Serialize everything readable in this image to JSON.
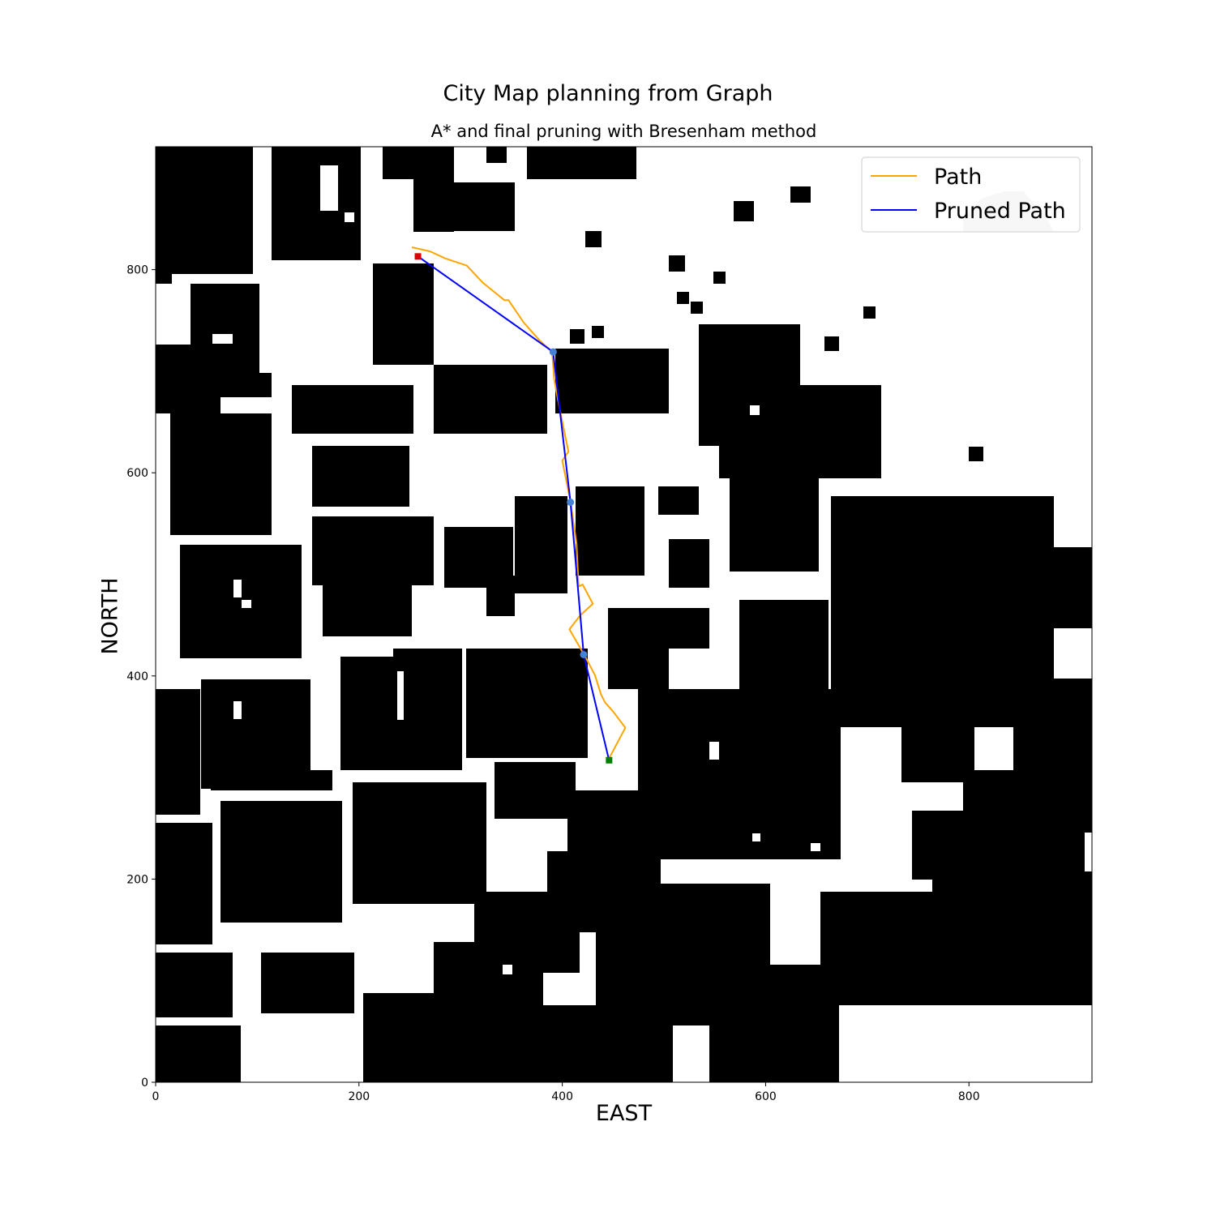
{
  "chart_data": {
    "type": "line",
    "title": "City Map planning from Graph",
    "subtitle": "A* and final pruning with Bresenham method",
    "xlabel": "EAST",
    "ylabel": "NORTH",
    "xlim": [
      0,
      921
    ],
    "ylim": [
      0,
      921
    ],
    "x_ticks": [
      0,
      200,
      400,
      600,
      800
    ],
    "y_ticks": [
      0,
      200,
      400,
      600,
      800
    ],
    "grid": false,
    "legend_placement": "top-right",
    "background": "occupancy grid of city buildings (black = obstacle, white = free)",
    "obstacle_color": "#000000",
    "free_color": "#ffffff",
    "series": [
      {
        "name": "Path",
        "color": "#ffa500",
        "x": [
          252,
          270,
          285,
          306,
          322,
          343,
          347,
          362,
          378,
          390,
          392,
          398,
          406,
          400,
          408,
          414,
          416,
          420,
          430,
          418,
          407,
          422,
          432,
          438,
          442,
          450,
          462,
          445
        ],
        "y": [
          822,
          818,
          811,
          804,
          787,
          770,
          770,
          748,
          730,
          719,
          692,
          660,
          621,
          612,
          572,
          530,
          488,
          490,
          471,
          460,
          446,
          420,
          401,
          382,
          374,
          365,
          349,
          317
        ]
      },
      {
        "name": "Pruned Path",
        "color": "#0000ff",
        "x": [
          258,
          391,
          408,
          421,
          446
        ],
        "y": [
          813,
          719,
          571,
          421,
          317
        ]
      }
    ],
    "waypoints": {
      "color": "#4682d4",
      "x": [
        391,
        408,
        421
      ],
      "y": [
        719,
        571,
        421
      ]
    },
    "start": {
      "x": 258,
      "y": 813,
      "color": "#dd0000"
    },
    "goal": {
      "x": 446,
      "y": 317,
      "color": "#008000"
    }
  }
}
